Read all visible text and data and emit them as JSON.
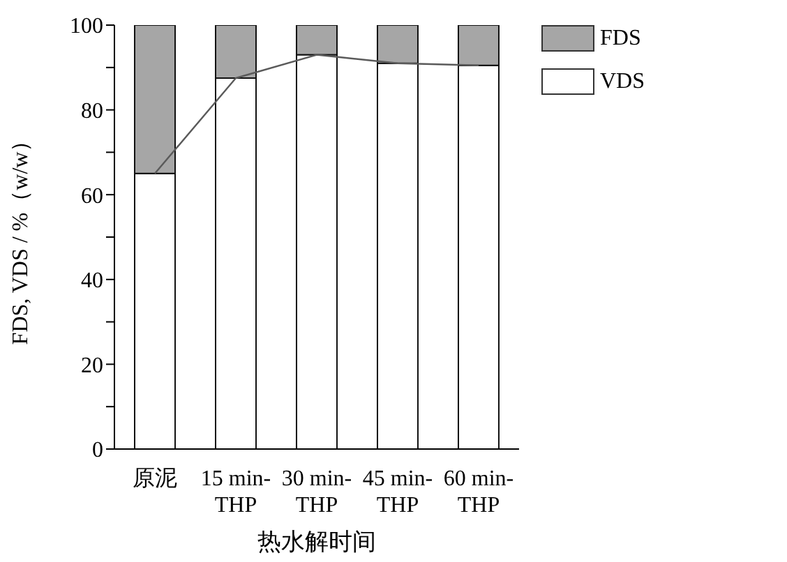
{
  "chart_data": {
    "type": "bar",
    "stacked": true,
    "xlabel": "热水解时间",
    "ylabel": "FDS, VDS / %（w/w）",
    "categories": [
      "原泥",
      "15 min-THP",
      "30 min-THP",
      "45 min-THP",
      "60 min-THP"
    ],
    "series": [
      {
        "name": "VDS",
        "color": "#ffffff",
        "values": [
          65,
          87.5,
          93,
          91,
          90.5
        ]
      },
      {
        "name": "FDS",
        "color": "#a6a6a6",
        "values": [
          35,
          12.5,
          7,
          9,
          9.5
        ]
      },
      {
        "type": "line",
        "color": "#5a5a5a",
        "values": [
          65,
          87.5,
          93,
          91,
          90.5
        ]
      }
    ],
    "ylim": [
      0,
      100
    ],
    "yticks": [
      0,
      {
        "value": 10,
        "label": null
      },
      20,
      {
        "value": 30,
        "label": null
      },
      40,
      {
        "value": 50,
        "label": null
      },
      60,
      {
        "value": 70,
        "label": null
      },
      80,
      {
        "value": 90,
        "label": null
      },
      100
    ],
    "legend": "top right",
    "marker": "none",
    "grid": false
  }
}
